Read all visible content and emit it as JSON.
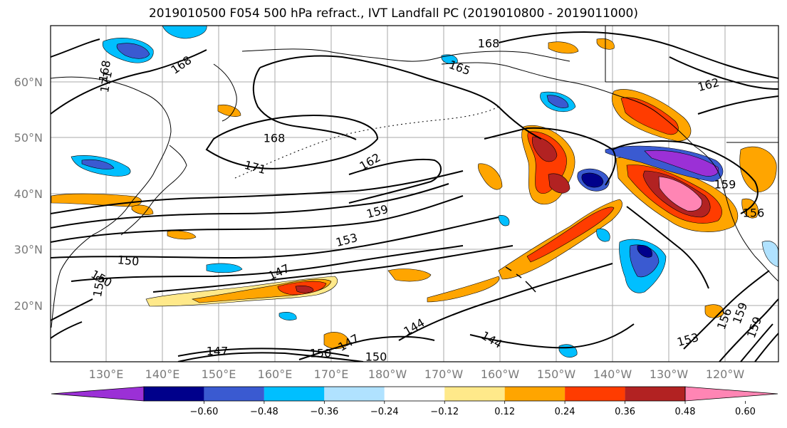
{
  "title": "2019010500 F054 500 hPa refract., IVT Landfall PC (2019010800 - 2019011000)",
  "lat_labels": [
    "60°N",
    "50°N",
    "40°N",
    "30°N",
    "20°N"
  ],
  "lon_labels": [
    "130°E",
    "140°E",
    "150°E",
    "160°E",
    "170°E",
    "180°W",
    "170°W",
    "160°W",
    "150°W",
    "140°W",
    "130°W",
    "120°W"
  ],
  "contour_labels": [
    "168",
    "171",
    "168",
    "168",
    "162",
    "171",
    "168",
    "162",
    "159",
    "153",
    "150",
    "147",
    "150",
    "153",
    "144",
    "144",
    "147",
    "150",
    "147",
    "150",
    "153",
    "156",
    "159",
    "159",
    "156",
    "159",
    "165"
  ],
  "colorbar": {
    "tick_labels": [
      "−0.60",
      "−0.48",
      "−0.36",
      "−0.24",
      "−0.12",
      "0.12",
      "0.24",
      "0.36",
      "0.48",
      "0.60"
    ],
    "colors": [
      "#9b30d6",
      "#00008b",
      "#3a5ad1",
      "#00bfff",
      "#b0e2ff",
      "#ffffff",
      "#ffe98a",
      "#ffa500",
      "#ff3c00",
      "#b22222",
      "#ff85b4"
    ]
  },
  "fill_colors": {
    "neg_light": "#b0e2ff",
    "neg_mid": "#00bfff",
    "neg_strong": "#3a5ad1",
    "neg_deep": "#00008b",
    "neg_extreme": "#9b30d6",
    "pos_light": "#ffe98a",
    "pos_mid": "#ffa500",
    "pos_strong": "#ff3c00",
    "pos_deep": "#b22222",
    "pos_extreme": "#ff85b4"
  }
}
